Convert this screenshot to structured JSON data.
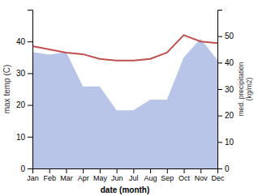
{
  "chart_data": {
    "type": "line",
    "categories": [
      "Jan",
      "Feb",
      "Mar",
      "Apr",
      "May",
      "Jun",
      "Jul",
      "Aug",
      "Sep",
      "Oct",
      "Nov",
      "Dec"
    ],
    "series": [
      {
        "type": "area",
        "axis": "y2",
        "color": "#b8c4e8",
        "values": [
          44,
          43,
          44,
          31,
          31,
          22,
          22,
          26,
          26,
          42,
          49,
          41
        ]
      },
      {
        "type": "line",
        "color": "#c0504d",
        "values": [
          38.5,
          37.5,
          36.5,
          36.0,
          34.5,
          34.0,
          34.0,
          34.5,
          36.5,
          42.0,
          40.0,
          39.5
        ]
      }
    ],
    "xlabel": "date (month)",
    "ylabel": "max temp (C)",
    "y2label": "med. precipitation\n(kg/m2)",
    "ylim": [
      0,
      50
    ],
    "yticks": [
      0,
      10,
      20,
      30,
      40
    ],
    "y2lim": [
      0,
      60
    ],
    "y2ticks": [
      0,
      10,
      20,
      30,
      40,
      50
    ],
    "grid": false
  }
}
